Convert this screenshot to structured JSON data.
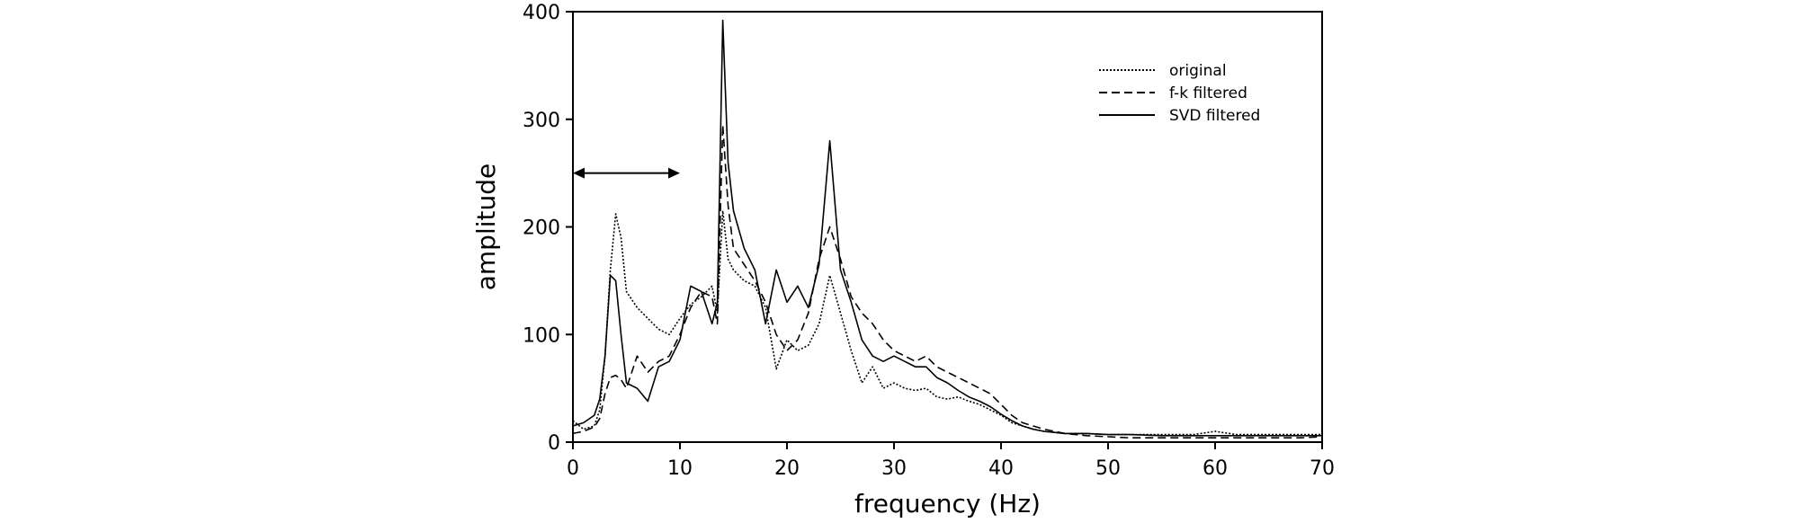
{
  "chart_data": {
    "type": "line",
    "xlabel": "frequency (Hz)",
    "ylabel": "amplitude",
    "xlim": [
      0,
      70
    ],
    "ylim": [
      0,
      400
    ],
    "xticks": [
      0,
      10,
      20,
      30,
      40,
      50,
      60,
      70
    ],
    "yticks": [
      0,
      100,
      200,
      300,
      400
    ],
    "grid": false,
    "legend_position": "top-right",
    "annotation": {
      "type": "double-arrow",
      "x_from": 0,
      "x_to": 10,
      "y": 250
    },
    "series": [
      {
        "name": "original",
        "style": "dotted",
        "x": [
          0,
          1,
          2,
          2.5,
          3,
          3.5,
          4,
          4.5,
          5,
          6,
          7,
          8,
          9,
          10,
          11,
          12,
          13,
          13.5,
          14,
          14.5,
          15,
          16,
          17,
          18,
          19,
          20,
          21,
          22,
          23,
          24,
          25,
          26,
          27,
          28,
          29,
          30,
          31,
          32,
          33,
          34,
          35,
          36,
          37,
          38,
          39,
          40,
          41,
          42,
          43,
          44,
          45,
          46,
          48,
          50,
          52,
          55,
          58,
          60,
          62,
          65,
          68,
          70
        ],
        "y": [
          20,
          12,
          15,
          30,
          80,
          160,
          212,
          190,
          140,
          125,
          115,
          105,
          100,
          115,
          128,
          135,
          145,
          120,
          215,
          170,
          160,
          150,
          145,
          125,
          68,
          95,
          85,
          90,
          110,
          155,
          120,
          85,
          55,
          70,
          50,
          55,
          50,
          48,
          50,
          42,
          40,
          42,
          38,
          35,
          30,
          25,
          18,
          15,
          12,
          10,
          9,
          8,
          8,
          7,
          7,
          7,
          7,
          10,
          7,
          7,
          7,
          7
        ]
      },
      {
        "name": "f-k filtered",
        "style": "dashed",
        "x": [
          0,
          1,
          2,
          2.5,
          3,
          3.5,
          4,
          4.5,
          5,
          6,
          7,
          8,
          9,
          10,
          11,
          12,
          13,
          13.5,
          14,
          14.5,
          15,
          16,
          17,
          18,
          19,
          20,
          21,
          22,
          23,
          24,
          25,
          26,
          27,
          28,
          29,
          30,
          31,
          32,
          33,
          34,
          35,
          36,
          37,
          38,
          39,
          40,
          41,
          42,
          43,
          44,
          45,
          46,
          48,
          50,
          52,
          55,
          58,
          60,
          62,
          65,
          68,
          70
        ],
        "y": [
          8,
          10,
          14,
          22,
          45,
          60,
          62,
          58,
          50,
          80,
          65,
          75,
          80,
          100,
          125,
          140,
          135,
          110,
          295,
          220,
          180,
          165,
          150,
          130,
          100,
          85,
          95,
          120,
          170,
          200,
          170,
          135,
          120,
          110,
          95,
          85,
          80,
          75,
          80,
          70,
          65,
          60,
          55,
          50,
          45,
          35,
          25,
          18,
          15,
          12,
          10,
          8,
          6,
          5,
          4,
          4,
          4,
          4,
          4,
          4,
          4,
          5
        ]
      },
      {
        "name": "SVD filtered",
        "style": "solid",
        "x": [
          0,
          1,
          2,
          2.5,
          3,
          3.5,
          4,
          4.5,
          5,
          6,
          7,
          8,
          9,
          10,
          11,
          12,
          13,
          13.5,
          14,
          14.5,
          15,
          16,
          17,
          18,
          19,
          20,
          21,
          22,
          23,
          24,
          25,
          26,
          27,
          28,
          29,
          30,
          31,
          32,
          33,
          34,
          35,
          36,
          37,
          38,
          39,
          40,
          41,
          42,
          43,
          44,
          45,
          46,
          48,
          50,
          52,
          55,
          58,
          60,
          62,
          65,
          68,
          70
        ],
        "y": [
          15,
          18,
          25,
          40,
          80,
          155,
          150,
          100,
          55,
          50,
          38,
          70,
          75,
          95,
          145,
          140,
          110,
          130,
          392,
          260,
          215,
          180,
          160,
          110,
          160,
          130,
          145,
          125,
          165,
          280,
          160,
          130,
          95,
          80,
          75,
          80,
          75,
          70,
          70,
          60,
          55,
          48,
          42,
          38,
          33,
          26,
          20,
          15,
          12,
          10,
          9,
          8,
          8,
          7,
          7,
          6,
          6,
          6,
          6,
          6,
          6,
          6
        ]
      }
    ]
  }
}
